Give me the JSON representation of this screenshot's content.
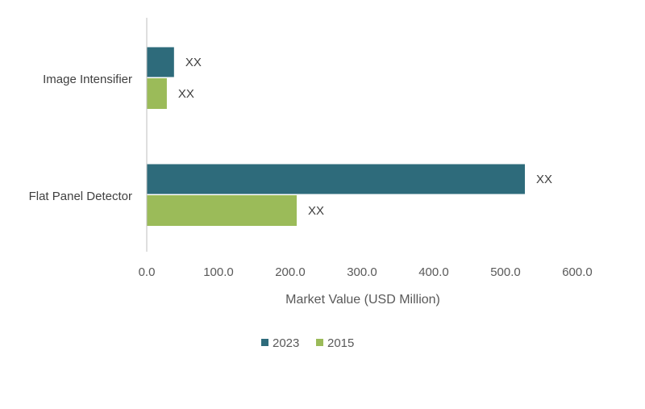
{
  "chart_data": {
    "type": "bar",
    "orientation": "horizontal",
    "categories": [
      "Image Intensifier",
      "Flat Panel Detector"
    ],
    "series": [
      {
        "name": "2023",
        "color": "#2e6b7b",
        "values": [
          38,
          527
        ],
        "data_labels": [
          "XX",
          "XX"
        ]
      },
      {
        "name": "2015",
        "color": "#9bbb59",
        "values": [
          28,
          209
        ],
        "data_labels": [
          "XX",
          "XX"
        ]
      }
    ],
    "xlabel": "Market Value (USD Million)",
    "ylabel": "",
    "title": "",
    "xlim": [
      0,
      600
    ],
    "x_ticks": [
      "0.0",
      "100.0",
      "200.0",
      "300.0",
      "400.0",
      "500.0",
      "600.0"
    ],
    "grid": false,
    "legend": "bottom-center"
  }
}
